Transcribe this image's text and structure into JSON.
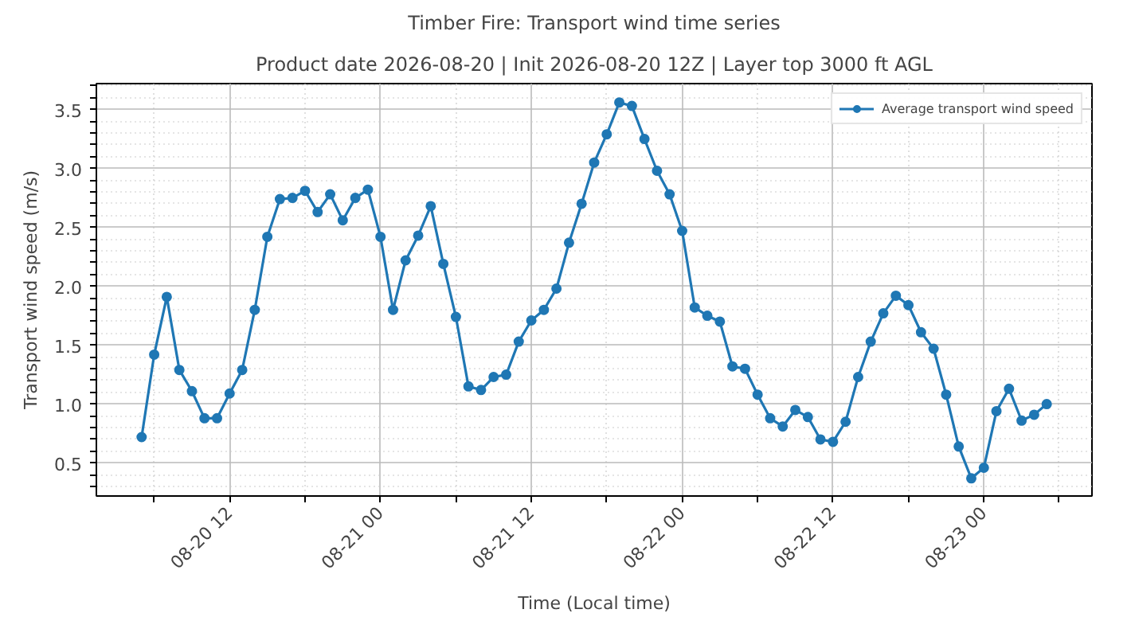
{
  "chart_data": {
    "type": "line",
    "title": "Timber Fire: Transport wind time series",
    "subtitle": "Product date 2026-08-20 | Init 2026-08-20 12Z | Layer top 3000 ft AGL",
    "xlabel": "Time (Local time)",
    "ylabel": "Transport wind speed (m/s)",
    "x": [
      "2026-08-20T05:00",
      "2026-08-20T06:00",
      "2026-08-20T07:00",
      "2026-08-20T08:00",
      "2026-08-20T09:00",
      "2026-08-20T10:00",
      "2026-08-20T11:00",
      "2026-08-20T12:00",
      "2026-08-20T13:00",
      "2026-08-20T14:00",
      "2026-08-20T15:00",
      "2026-08-20T16:00",
      "2026-08-20T17:00",
      "2026-08-20T18:00",
      "2026-08-20T19:00",
      "2026-08-20T20:00",
      "2026-08-20T21:00",
      "2026-08-20T22:00",
      "2026-08-20T23:00",
      "2026-08-21T00:00",
      "2026-08-21T01:00",
      "2026-08-21T02:00",
      "2026-08-21T03:00",
      "2026-08-21T04:00",
      "2026-08-21T05:00",
      "2026-08-21T06:00",
      "2026-08-21T07:00",
      "2026-08-21T08:00",
      "2026-08-21T09:00",
      "2026-08-21T10:00",
      "2026-08-21T11:00",
      "2026-08-21T12:00",
      "2026-08-21T13:00",
      "2026-08-21T14:00",
      "2026-08-21T15:00",
      "2026-08-21T16:00",
      "2026-08-21T17:00",
      "2026-08-21T18:00",
      "2026-08-21T19:00",
      "2026-08-21T20:00",
      "2026-08-21T21:00",
      "2026-08-21T22:00",
      "2026-08-21T23:00",
      "2026-08-22T00:00",
      "2026-08-22T01:00",
      "2026-08-22T02:00",
      "2026-08-22T03:00",
      "2026-08-22T04:00",
      "2026-08-22T05:00",
      "2026-08-22T06:00",
      "2026-08-22T07:00",
      "2026-08-22T08:00",
      "2026-08-22T09:00",
      "2026-08-22T10:00",
      "2026-08-22T11:00",
      "2026-08-22T12:00",
      "2026-08-22T13:00",
      "2026-08-22T14:00",
      "2026-08-22T15:00",
      "2026-08-22T16:00",
      "2026-08-22T17:00",
      "2026-08-22T18:00",
      "2026-08-22T19:00",
      "2026-08-22T20:00",
      "2026-08-22T21:00",
      "2026-08-22T22:00",
      "2026-08-22T23:00",
      "2026-08-23T00:00",
      "2026-08-23T01:00",
      "2026-08-23T02:00",
      "2026-08-23T03:00",
      "2026-08-23T04:00",
      "2026-08-23T05:00"
    ],
    "series": [
      {
        "name": "Average transport wind speed",
        "color": "#1f77b4",
        "values": [
          0.72,
          1.42,
          1.91,
          1.29,
          1.11,
          0.88,
          0.88,
          1.09,
          1.29,
          1.8,
          2.42,
          2.74,
          2.75,
          2.81,
          2.63,
          2.78,
          2.56,
          2.75,
          2.82,
          2.42,
          1.8,
          2.22,
          2.43,
          2.68,
          2.19,
          1.74,
          1.15,
          1.12,
          1.23,
          1.25,
          1.53,
          1.71,
          1.8,
          1.98,
          2.37,
          2.7,
          3.05,
          3.29,
          3.56,
          3.53,
          3.25,
          2.98,
          2.78,
          2.47,
          1.82,
          1.75,
          1.7,
          1.32,
          1.3,
          1.08,
          0.88,
          0.81,
          0.95,
          0.89,
          0.7,
          0.68,
          0.85,
          1.23,
          1.53,
          1.77,
          1.92,
          1.84,
          1.61,
          1.47,
          1.08,
          0.64,
          0.37,
          0.46,
          0.94,
          1.13,
          0.86,
          0.91,
          1.0
        ]
      }
    ],
    "xlim": [
      "2026-08-20T01:24",
      "2026-08-23T08:36"
    ],
    "xticks": [
      {
        "value": "2026-08-20T06:00",
        "label": null
      },
      {
        "value": "2026-08-20T12:00",
        "label": "08-20 12"
      },
      {
        "value": "2026-08-20T18:00",
        "label": null
      },
      {
        "value": "2026-08-21T00:00",
        "label": "08-21 00"
      },
      {
        "value": "2026-08-21T06:00",
        "label": null
      },
      {
        "value": "2026-08-21T12:00",
        "label": "08-21 12"
      },
      {
        "value": "2026-08-21T18:00",
        "label": null
      },
      {
        "value": "2026-08-22T00:00",
        "label": "08-22 00"
      },
      {
        "value": "2026-08-22T06:00",
        "label": null
      },
      {
        "value": "2026-08-22T12:00",
        "label": "08-22 12"
      },
      {
        "value": "2026-08-22T18:00",
        "label": null
      },
      {
        "value": "2026-08-23T00:00",
        "label": "08-23 00"
      },
      {
        "value": "2026-08-23T06:00",
        "label": null
      }
    ],
    "ylim": [
      0.22,
      3.72
    ],
    "yticks": [
      {
        "value": 0.3,
        "label": null
      },
      {
        "value": 0.4,
        "label": null
      },
      {
        "value": 0.5,
        "label": "0.5"
      },
      {
        "value": 0.6,
        "label": null
      },
      {
        "value": 0.7,
        "label": null
      },
      {
        "value": 0.8,
        "label": null
      },
      {
        "value": 0.9,
        "label": null
      },
      {
        "value": 1.0,
        "label": "1.0"
      },
      {
        "value": 1.1,
        "label": null
      },
      {
        "value": 1.2,
        "label": null
      },
      {
        "value": 1.3,
        "label": null
      },
      {
        "value": 1.4,
        "label": null
      },
      {
        "value": 1.5,
        "label": "1.5"
      },
      {
        "value": 1.6,
        "label": null
      },
      {
        "value": 1.7,
        "label": null
      },
      {
        "value": 1.8,
        "label": null
      },
      {
        "value": 1.9,
        "label": null
      },
      {
        "value": 2.0,
        "label": "2.0"
      },
      {
        "value": 2.1,
        "label": null
      },
      {
        "value": 2.2,
        "label": null
      },
      {
        "value": 2.3,
        "label": null
      },
      {
        "value": 2.4,
        "label": null
      },
      {
        "value": 2.5,
        "label": "2.5"
      },
      {
        "value": 2.6,
        "label": null
      },
      {
        "value": 2.7,
        "label": null
      },
      {
        "value": 2.8,
        "label": null
      },
      {
        "value": 2.9,
        "label": null
      },
      {
        "value": 3.0,
        "label": "3.0"
      },
      {
        "value": 3.1,
        "label": null
      },
      {
        "value": 3.2,
        "label": null
      },
      {
        "value": 3.3,
        "label": null
      },
      {
        "value": 3.4,
        "label": null
      },
      {
        "value": 3.5,
        "label": "3.5"
      },
      {
        "value": 3.6,
        "label": null
      },
      {
        "value": 3.7,
        "label": null
      }
    ],
    "grid": true,
    "legend": "top right",
    "marker": "circle",
    "line_style": "solid"
  }
}
